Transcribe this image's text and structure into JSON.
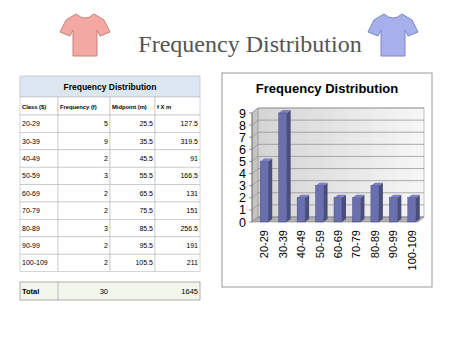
{
  "title": "Frequency Distribution",
  "table": {
    "title": "Frequency Distribution",
    "columns": [
      "Class ($)",
      "Frequency (f)",
      "Midpoint (m)",
      "f X m"
    ],
    "rows": [
      [
        "20-29",
        5,
        25.5,
        127.5
      ],
      [
        "30-39",
        9,
        35.5,
        319.5
      ],
      [
        "40-49",
        2,
        45.5,
        91
      ],
      [
        "50-59",
        3,
        55.5,
        166.5
      ],
      [
        "60-69",
        2,
        65.5,
        131
      ],
      [
        "70-79",
        2,
        75.5,
        151
      ],
      [
        "80-89",
        3,
        85.5,
        256.5
      ],
      [
        "90-99",
        2,
        95.5,
        191
      ],
      [
        "100-109",
        2,
        105.5,
        211
      ]
    ],
    "total": {
      "label": "Total",
      "frequency": 30,
      "fxm": 1645
    }
  },
  "chart_data": {
    "type": "bar",
    "title": "Frequency Distribution",
    "categories": [
      "20-29",
      "30-39",
      "40-49",
      "50-59",
      "60-69",
      "70-79",
      "80-89",
      "90-99",
      "100-109"
    ],
    "values": [
      5,
      9,
      2,
      3,
      2,
      2,
      3,
      2,
      2
    ],
    "color": "#6a6fb0",
    "ylim": [
      0,
      9
    ],
    "yticks": [
      0,
      1,
      2,
      3,
      4,
      5,
      6,
      7,
      8,
      9
    ],
    "grid": true
  }
}
